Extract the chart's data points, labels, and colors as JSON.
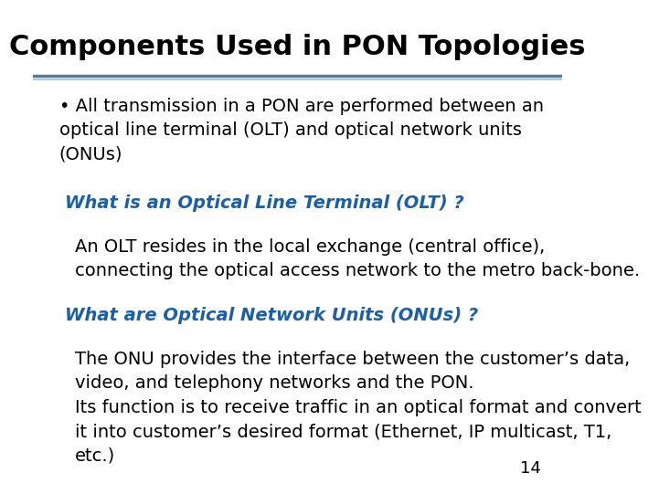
{
  "title": "Components Used in PON Topologies",
  "title_fontsize": 22,
  "title_color": "#000000",
  "background_color": "#ffffff",
  "separator_color_top": "#5a7a9a",
  "separator_color_bottom": "#b0c8e0",
  "bullet_text": "• All transmission in a PON are performed between an\noptical line terminal (OLT) and optical network units\n(ONUs)",
  "bullet_fontsize": 14,
  "bullet_color": "#000000",
  "heading1": "What is an Optical Line Terminal (OLT) ?",
  "heading1_color": "#1a5fa8",
  "heading1_fontsize": 14,
  "body1": "An OLT resides in the local exchange (central office),\nconnecting the optical access network to the metro back-bone.",
  "body1_fontsize": 14,
  "body1_color": "#000000",
  "heading2": "What are Optical Network Units (ONUs) ?",
  "heading2_color": "#1a5fa8",
  "heading2_fontsize": 14,
  "body2": "The ONU provides the interface between the customer’s data,\nvideo, and telephony networks and the PON.\nIts function is to receive traffic in an optical format and convert\nit into customer’s desired format (Ethernet, IP multicast, T1,\netc.)",
  "body2_fontsize": 14,
  "body2_color": "#000000",
  "page_number": "14",
  "page_number_fontsize": 13,
  "page_number_color": "#000000"
}
